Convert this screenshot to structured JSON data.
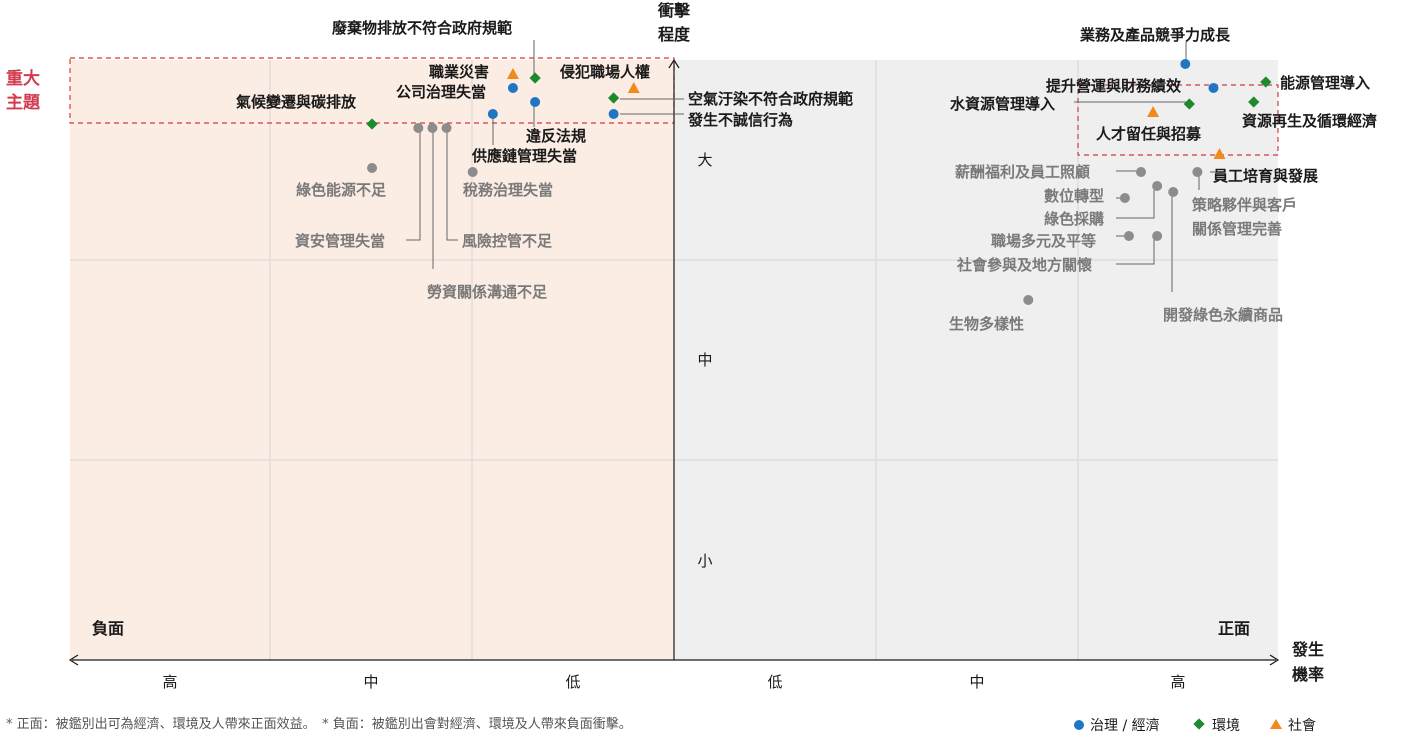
{
  "chart_data": {
    "type": "scatter",
    "y_axis_title": [
      "衝擊",
      "程度"
    ],
    "x_axis_title": [
      "發生",
      "機率"
    ],
    "x_ticks": [
      "高",
      "中",
      "低",
      "低",
      "中",
      "高"
    ],
    "y_ticks": [
      "大",
      "中",
      "小"
    ],
    "left_zone_label": "負面",
    "right_zone_label": "正面",
    "material_label": [
      "重大",
      "主題"
    ],
    "x_range": [
      -3,
      3
    ],
    "y_range": [
      0,
      3
    ],
    "categories": [
      {
        "name": "治理 / 經濟",
        "marker": "circle",
        "color": "#1f77c4"
      },
      {
        "name": "環境",
        "marker": "diamond",
        "color": "#1e8a2e"
      },
      {
        "name": "社會",
        "marker": "triangle",
        "color": "#f08a1c"
      }
    ],
    "points": [
      {
        "label": "廢棄物排放不符合政府規範",
        "x": -0.69,
        "y": 2.91,
        "cat": "環境",
        "group": "top"
      },
      {
        "label": "職業災害",
        "x": -0.8,
        "y": 2.93,
        "cat": "社會",
        "group": "top"
      },
      {
        "label": "公司治理失當",
        "x": -0.8,
        "y": 2.86,
        "cat": "治理 / 經濟",
        "group": "top"
      },
      {
        "label": "侵犯職場人權",
        "x": -0.2,
        "y": 2.86,
        "cat": "社會",
        "group": "top"
      },
      {
        "label": "氣候變遷與碳排放",
        "x": -1.5,
        "y": 2.68,
        "cat": "環境",
        "group": "top"
      },
      {
        "label": "空氣汙染不符合政府規範",
        "x": -0.3,
        "y": 2.81,
        "cat": "環境",
        "group": "top"
      },
      {
        "label": "發生不誠信行為",
        "x": -0.3,
        "y": 2.73,
        "cat": "治理 / 經濟",
        "group": "top"
      },
      {
        "label": "違反法規",
        "x": -0.69,
        "y": 2.79,
        "cat": "治理 / 經濟",
        "group": "top"
      },
      {
        "label": "供應鏈管理失當",
        "x": -0.9,
        "y": 2.73,
        "cat": "治理 / 經濟",
        "group": "top"
      },
      {
        "label": "綠色能源不足",
        "x": -1.5,
        "y": 2.46,
        "cat": "",
        "group": "other"
      },
      {
        "label": "稅務治理失當",
        "x": -1.0,
        "y": 2.44,
        "cat": "",
        "group": "other"
      },
      {
        "label": "資安管理失當",
        "x": -1.27,
        "y": 2.66,
        "cat": "",
        "group": "other"
      },
      {
        "label": "風險控管不足",
        "x": -1.13,
        "y": 2.66,
        "cat": "",
        "group": "other"
      },
      {
        "label": "勞資關係溝通不足",
        "x": -1.2,
        "y": 2.66,
        "cat": "",
        "group": "other"
      },
      {
        "label": "業務及產品競爭力成長",
        "x": 2.54,
        "y": 2.98,
        "cat": "治理 / 經濟",
        "group": "top"
      },
      {
        "label": "能源管理導入",
        "x": 2.94,
        "y": 2.89,
        "cat": "環境",
        "group": "top"
      },
      {
        "label": "提升營運與財務績效",
        "x": 2.68,
        "y": 2.86,
        "cat": "治理 / 經濟",
        "group": "top"
      },
      {
        "label": "資源再生及循環經濟",
        "x": 2.88,
        "y": 2.79,
        "cat": "環境",
        "group": "top"
      },
      {
        "label": "水資源管理導入",
        "x": 2.56,
        "y": 2.78,
        "cat": "環境",
        "group": "top"
      },
      {
        "label": "人才留任與招募",
        "x": 2.38,
        "y": 2.74,
        "cat": "社會",
        "group": "top"
      },
      {
        "label": "員工培育與發展",
        "x": 2.71,
        "y": 2.53,
        "cat": "社會",
        "group": "top"
      },
      {
        "label": "薪酬福利及員工照顧",
        "x": 2.32,
        "y": 2.44,
        "cat": "",
        "group": "other"
      },
      {
        "label": "數位轉型",
        "x": 2.24,
        "y": 2.31,
        "cat": "",
        "group": "other"
      },
      {
        "label": "綠色採購",
        "x": 2.4,
        "y": 2.37,
        "cat": "",
        "group": "other"
      },
      {
        "label": "策略夥伴與客戶關係管理完善",
        "x": 2.6,
        "y": 2.44,
        "cat": "",
        "group": "other"
      },
      {
        "label": "職場多元及平等",
        "x": 2.26,
        "y": 2.12,
        "cat": "",
        "group": "other"
      },
      {
        "label": "社會參與及地方關懷",
        "x": 2.4,
        "y": 2.12,
        "cat": "",
        "group": "other"
      },
      {
        "label": "開發綠色永續商品",
        "x": 2.48,
        "y": 2.34,
        "cat": "",
        "group": "other"
      },
      {
        "label": "生物多樣性",
        "x": 1.76,
        "y": 1.8,
        "cat": "",
        "group": "other"
      }
    ]
  },
  "footnote": "* 正面：被鑑別出可為經濟、環境及人帶來正面效益。　* 負面：被鑑別出會對經濟、環境及人帶來負面衝擊。"
}
